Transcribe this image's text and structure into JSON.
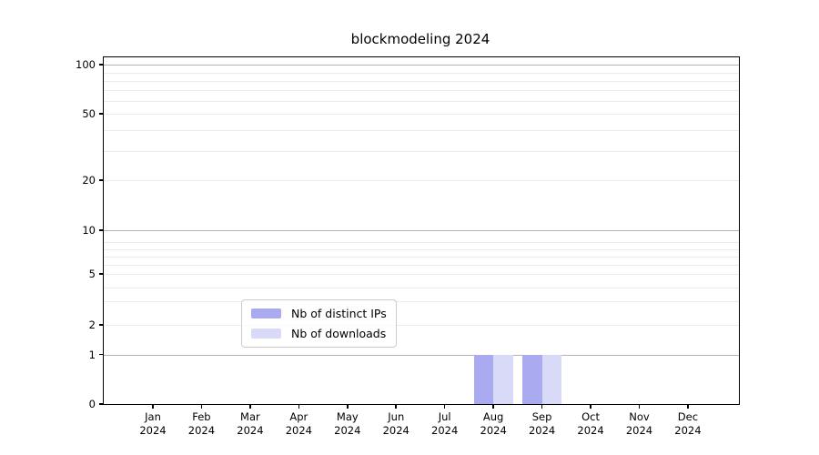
{
  "title": "blockmodeling 2024",
  "chart_data": {
    "type": "bar",
    "title": "blockmodeling 2024",
    "x_categories": [
      {
        "month": "Jan",
        "year": "2024"
      },
      {
        "month": "Feb",
        "year": "2024"
      },
      {
        "month": "Mar",
        "year": "2024"
      },
      {
        "month": "Apr",
        "year": "2024"
      },
      {
        "month": "May",
        "year": "2024"
      },
      {
        "month": "Jun",
        "year": "2024"
      },
      {
        "month": "Jul",
        "year": "2024"
      },
      {
        "month": "Aug",
        "year": "2024"
      },
      {
        "month": "Sep",
        "year": "2024"
      },
      {
        "month": "Oct",
        "year": "2024"
      },
      {
        "month": "Nov",
        "year": "2024"
      },
      {
        "month": "Dec",
        "year": "2024"
      }
    ],
    "series": [
      {
        "name": "Nb of distinct IPs",
        "color": "#aaaaf0",
        "values": [
          0,
          0,
          0,
          0,
          0,
          0,
          0,
          1,
          1,
          0,
          0,
          0
        ]
      },
      {
        "name": "Nb of downloads",
        "color": "#d9d9f8",
        "values": [
          0,
          0,
          0,
          0,
          0,
          0,
          0,
          1,
          1,
          0,
          0,
          0
        ]
      }
    ],
    "yscale": "symlog",
    "ylim": [
      0,
      100
    ],
    "yticks_labeled": [
      0,
      1,
      2,
      5,
      10,
      20,
      50,
      100
    ],
    "y_major_gridlines": [
      1,
      10,
      100
    ],
    "y_minor_gridlines": [
      2,
      3,
      4,
      5,
      6,
      7,
      8,
      9,
      20,
      30,
      40,
      50,
      60,
      70,
      80,
      90
    ],
    "grid": "horizontal",
    "legend_position": "lower center"
  }
}
